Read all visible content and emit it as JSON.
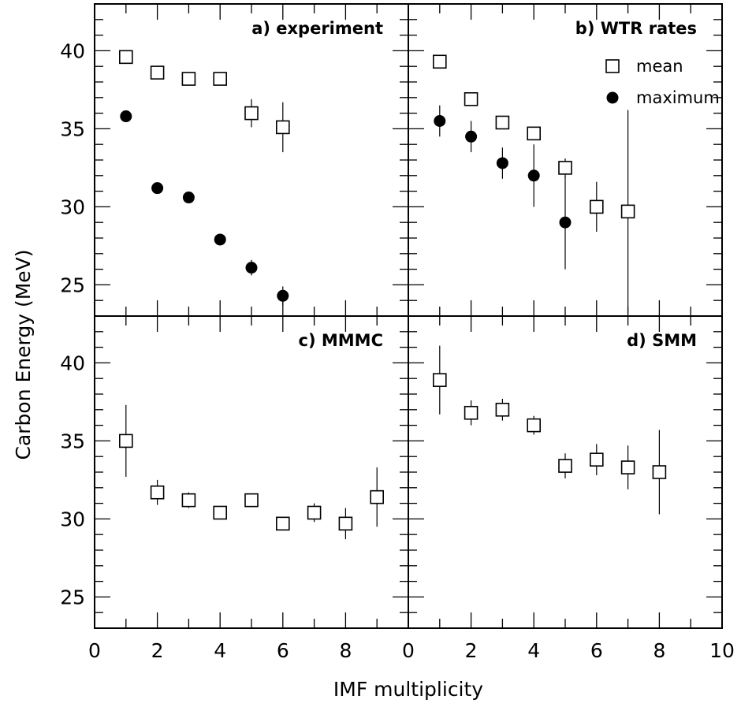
{
  "figure": {
    "ylabel": "Carbon Energy (MeV)",
    "xlabel": "IMF multiplicity"
  },
  "chart_data": [
    {
      "type": "scatter",
      "title": "a) experiment",
      "xlim": [
        0,
        10
      ],
      "ylim": [
        23,
        43
      ],
      "x_ticks": [
        0,
        2,
        4,
        6,
        8
      ],
      "y_ticks": [
        25,
        30,
        35,
        40
      ],
      "series": [
        {
          "marker": "open-square",
          "points": [
            {
              "x": 1,
              "y": 39.6,
              "err": 0.4
            },
            {
              "x": 2,
              "y": 38.6,
              "err": 0.3
            },
            {
              "x": 3,
              "y": 38.2,
              "err": 0.3
            },
            {
              "x": 4,
              "y": 38.2,
              "err": 0.3
            },
            {
              "x": 5,
              "y": 36.0,
              "err": 0.9
            },
            {
              "x": 6,
              "y": 35.1,
              "err": 1.6
            }
          ]
        },
        {
          "marker": "filled-circle",
          "points": [
            {
              "x": 1,
              "y": 35.8,
              "err": 0.2
            },
            {
              "x": 2,
              "y": 31.2,
              "err": 0.2
            },
            {
              "x": 3,
              "y": 30.6,
              "err": 0.2
            },
            {
              "x": 4,
              "y": 27.9,
              "err": 0.2
            },
            {
              "x": 5,
              "y": 26.1,
              "err": 0.5
            },
            {
              "x": 6,
              "y": 24.3,
              "err": 0.6
            }
          ]
        }
      ]
    },
    {
      "type": "scatter",
      "title": "b) WTR rates",
      "xlim": [
        0,
        10
      ],
      "ylim": [
        23,
        43
      ],
      "x_ticks": [
        0,
        2,
        4,
        6,
        8,
        10
      ],
      "y_ticks": [],
      "legend": {
        "position": "top-right",
        "entries": [
          {
            "marker": "open-square",
            "label": "mean"
          },
          {
            "marker": "filled-circle",
            "label": "maximum"
          }
        ]
      },
      "series": [
        {
          "name": "mean",
          "marker": "open-square",
          "points": [
            {
              "x": 1,
              "y": 39.3,
              "err": 0.3
            },
            {
              "x": 2,
              "y": 36.9,
              "err": 0.3
            },
            {
              "x": 3,
              "y": 35.4,
              "err": 0.3
            },
            {
              "x": 4,
              "y": 34.7,
              "err": 0.3
            },
            {
              "x": 5,
              "y": 32.5,
              "err": 0.6
            },
            {
              "x": 6,
              "y": 30.0,
              "err": 1.6
            },
            {
              "x": 7,
              "y": 29.7,
              "err": 6.5
            }
          ]
        },
        {
          "name": "maximum",
          "marker": "filled-circle",
          "points": [
            {
              "x": 1,
              "y": 35.5,
              "err": 1.0
            },
            {
              "x": 2,
              "y": 34.5,
              "err": 1.0
            },
            {
              "x": 3,
              "y": 32.8,
              "err": 1.0
            },
            {
              "x": 4,
              "y": 32.0,
              "err": 2.0
            },
            {
              "x": 5,
              "y": 29.0,
              "err": 3.0
            }
          ]
        }
      ]
    },
    {
      "type": "scatter",
      "title": "c) MMMC",
      "xlim": [
        0,
        10
      ],
      "ylim": [
        23,
        43
      ],
      "x_ticks": [
        0,
        2,
        4,
        6,
        8
      ],
      "y_ticks": [
        25,
        30,
        35,
        40
      ],
      "series": [
        {
          "marker": "open-square",
          "points": [
            {
              "x": 1,
              "y": 35.0,
              "err": 2.3
            },
            {
              "x": 2,
              "y": 31.7,
              "err": 0.8
            },
            {
              "x": 3,
              "y": 31.2,
              "err": 0.5
            },
            {
              "x": 4,
              "y": 30.4,
              "err": 0.3
            },
            {
              "x": 5,
              "y": 31.2,
              "err": 0.3
            },
            {
              "x": 6,
              "y": 29.7,
              "err": 0.3
            },
            {
              "x": 7,
              "y": 30.4,
              "err": 0.6
            },
            {
              "x": 8,
              "y": 29.7,
              "err": 1.0
            },
            {
              "x": 9,
              "y": 31.4,
              "err": 1.9
            }
          ]
        }
      ]
    },
    {
      "type": "scatter",
      "title": "d) SMM",
      "xlim": [
        0,
        10
      ],
      "ylim": [
        23,
        43
      ],
      "x_ticks": [
        0,
        2,
        4,
        6,
        8,
        10
      ],
      "y_ticks": [],
      "series": [
        {
          "marker": "open-square",
          "points": [
            {
              "x": 1,
              "y": 38.9,
              "err": 2.2
            },
            {
              "x": 2,
              "y": 36.8,
              "err": 0.8
            },
            {
              "x": 3,
              "y": 37.0,
              "err": 0.7
            },
            {
              "x": 4,
              "y": 36.0,
              "err": 0.6
            },
            {
              "x": 5,
              "y": 33.4,
              "err": 0.8
            },
            {
              "x": 6,
              "y": 33.8,
              "err": 1.0
            },
            {
              "x": 7,
              "y": 33.3,
              "err": 1.4
            },
            {
              "x": 8,
              "y": 33.0,
              "err": 2.7
            }
          ]
        }
      ]
    }
  ]
}
